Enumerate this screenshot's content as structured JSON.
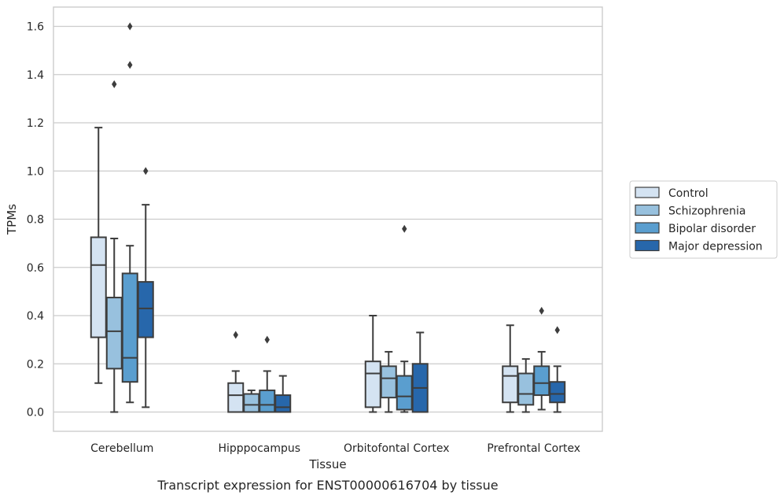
{
  "chart_data": {
    "type": "box",
    "caption": "Transcript expression for ENST00000616704 by tissue",
    "xlabel": "Tissue",
    "ylabel": "TPMs",
    "ylim": [
      -0.08,
      1.68
    ],
    "yticks": [
      0.0,
      0.2,
      0.4,
      0.6,
      0.8,
      1.0,
      1.2,
      1.4,
      1.6
    ],
    "ytick_labels": [
      "0.0",
      "0.2",
      "0.4",
      "0.6",
      "0.8",
      "1.0",
      "1.2",
      "1.4",
      "1.6"
    ],
    "grid": "horizontal",
    "legend_position": "right",
    "categories": [
      "Cerebellum",
      "Hipppocampus",
      "Orbitofontal Cortex",
      "Prefrontal Cortex"
    ],
    "series": [
      {
        "name": "Control",
        "color": "#d4e3f2",
        "boxes": [
          {
            "whislo": 0.12,
            "q1": 0.31,
            "med": 0.61,
            "q3": 0.725,
            "whishi": 1.18,
            "fliers": []
          },
          {
            "whislo": 0.0,
            "q1": 0.0,
            "med": 0.07,
            "q3": 0.12,
            "whishi": 0.17,
            "fliers": [
              0.32
            ]
          },
          {
            "whislo": 0.0,
            "q1": 0.02,
            "med": 0.16,
            "q3": 0.21,
            "whishi": 0.4,
            "fliers": []
          },
          {
            "whislo": 0.0,
            "q1": 0.04,
            "med": 0.15,
            "q3": 0.19,
            "whishi": 0.36,
            "fliers": []
          }
        ]
      },
      {
        "name": "Schizophrenia",
        "color": "#98c1de",
        "boxes": [
          {
            "whislo": 0.0,
            "q1": 0.18,
            "med": 0.335,
            "q3": 0.475,
            "whishi": 0.72,
            "fliers": [
              1.36
            ]
          },
          {
            "whislo": 0.0,
            "q1": 0.0,
            "med": 0.03,
            "q3": 0.075,
            "whishi": 0.09,
            "fliers": []
          },
          {
            "whislo": 0.0,
            "q1": 0.06,
            "med": 0.14,
            "q3": 0.19,
            "whishi": 0.25,
            "fliers": []
          },
          {
            "whislo": 0.0,
            "q1": 0.03,
            "med": 0.075,
            "q3": 0.16,
            "whishi": 0.22,
            "fliers": []
          }
        ]
      },
      {
        "name": "Bipolar disorder",
        "color": "#5a9ecf",
        "boxes": [
          {
            "whislo": 0.04,
            "q1": 0.125,
            "med": 0.225,
            "q3": 0.575,
            "whishi": 0.69,
            "fliers": [
              1.44,
              1.6
            ]
          },
          {
            "whislo": 0.0,
            "q1": 0.0,
            "med": 0.03,
            "q3": 0.09,
            "whishi": 0.17,
            "fliers": [
              0.3
            ]
          },
          {
            "whislo": 0.0,
            "q1": 0.01,
            "med": 0.065,
            "q3": 0.15,
            "whishi": 0.21,
            "fliers": [
              0.76
            ]
          },
          {
            "whislo": 0.01,
            "q1": 0.07,
            "med": 0.12,
            "q3": 0.19,
            "whishi": 0.25,
            "fliers": [
              0.42
            ]
          }
        ]
      },
      {
        "name": "Major depression",
        "color": "#2767ab",
        "boxes": [
          {
            "whislo": 0.02,
            "q1": 0.31,
            "med": 0.43,
            "q3": 0.54,
            "whishi": 0.86,
            "fliers": [
              1.0
            ]
          },
          {
            "whislo": 0.0,
            "q1": 0.0,
            "med": 0.02,
            "q3": 0.07,
            "whishi": 0.15,
            "fliers": []
          },
          {
            "whislo": 0.0,
            "q1": 0.0,
            "med": 0.1,
            "q3": 0.2,
            "whishi": 0.33,
            "fliers": []
          },
          {
            "whislo": 0.0,
            "q1": 0.04,
            "med": 0.075,
            "q3": 0.125,
            "whishi": 0.19,
            "fliers": [
              0.34
            ]
          }
        ]
      }
    ]
  }
}
